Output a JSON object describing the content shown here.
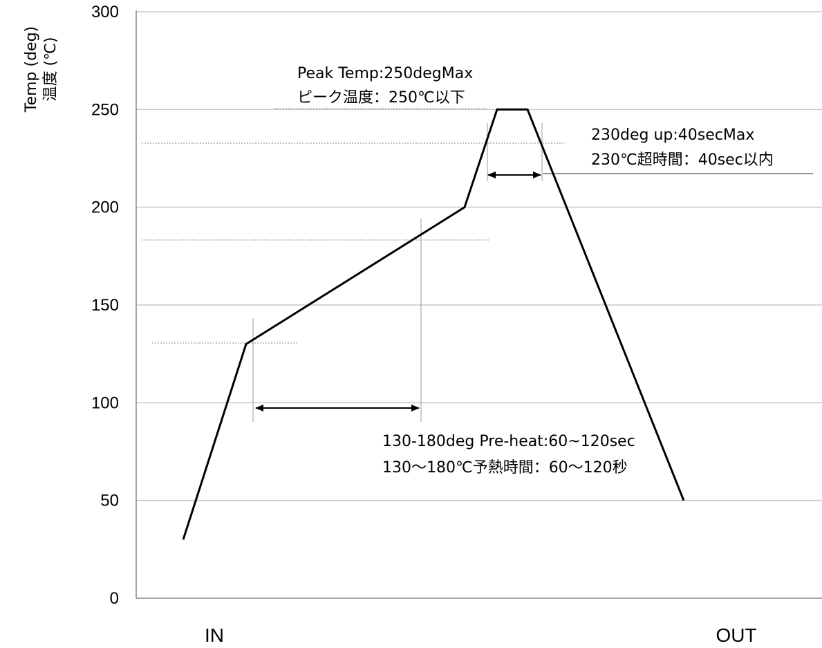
{
  "chart_data": {
    "type": "line",
    "ylabel": "Temp (deg)",
    "ylabel_jp": "温度 (℃)",
    "ylim": [
      0,
      300
    ],
    "yticks": [
      0,
      50,
      100,
      150,
      200,
      250,
      300
    ],
    "x_labels": {
      "start": "IN",
      "end": "OUT"
    },
    "grid": true,
    "legend": "none",
    "series": [
      {
        "values": [
          30,
          130,
          200,
          250,
          250,
          50
        ]
      }
    ],
    "annotations": {
      "peak": {
        "line1": "Peak Temp:250degMax",
        "line2": "ピーク温度：250℃以下"
      },
      "above230": {
        "line1": "230deg up:40secMax",
        "line2": "230℃超時間：40sec以内"
      },
      "preheat": {
        "line1": "130-180deg  Pre-heat:60~120sec",
        "line2": "130～180℃予熱時間：60～120秒"
      }
    }
  },
  "colors": {
    "line": "#000000",
    "grid": "#c8c8c8",
    "guide": "#888888"
  }
}
